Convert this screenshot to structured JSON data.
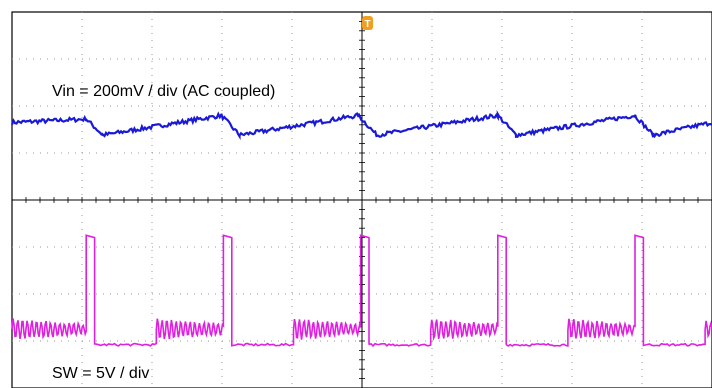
{
  "chart_data": {
    "type": "line",
    "title": "",
    "grid": true,
    "grid_divisions": {
      "x": 10,
      "y": 8
    },
    "trigger_marker": "T",
    "trigger_icon": "trigger-marker-icon",
    "annotations": [
      "Vin = 200mV / div (AC coupled)",
      "SW = 5V / div"
    ],
    "series": [
      {
        "name": "Vin",
        "color": "#1a1ad6",
        "scale": "200mV / div",
        "coupling": "AC",
        "x_div": [
          0,
          1.06,
          1.3,
          2.99,
          3.25,
          4.95,
          5.21,
          6.94,
          7.2,
          8.9,
          9.16,
          10
        ],
        "y_div": [
          5.65,
          5.72,
          5.38,
          5.8,
          5.38,
          5.8,
          5.38,
          5.8,
          5.38,
          5.8,
          5.38,
          5.65
        ]
      },
      {
        "name": "SW",
        "color": "#e020e0",
        "scale": "5V / div",
        "period_div": 1.96,
        "first_pulse_div": 1.06,
        "pulse_width_div": 0.12,
        "high_level_div": 3.2,
        "low_level_div": 0.92,
        "ring_level_div": 1.25,
        "ring_amplitude_div": 0.22
      }
    ]
  }
}
